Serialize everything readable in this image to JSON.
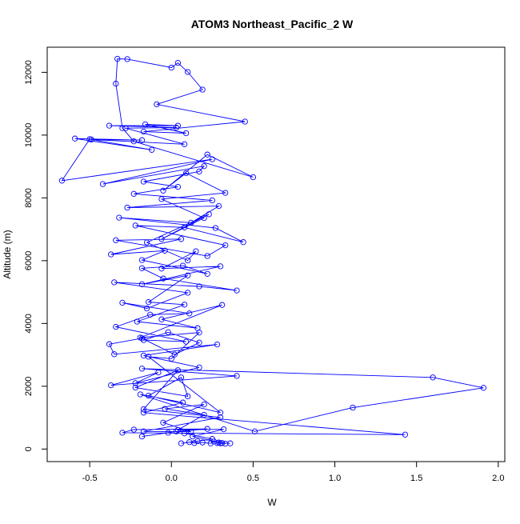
{
  "chart_data": {
    "type": "scatter",
    "connected": true,
    "title": "ATOM3 Northeast_Pacific_2 W",
    "xlabel": "W",
    "ylabel": "Altitude (m)",
    "xlim": [
      -0.76,
      2.04
    ],
    "ylim": [
      -400,
      12800
    ],
    "xticks": [
      -0.5,
      0.0,
      0.5,
      1.0,
      1.5,
      2.0
    ],
    "xtick_labels": [
      "-0.5",
      "0.0",
      "0.5",
      "1.0",
      "1.5",
      "2.0"
    ],
    "yticks": [
      0,
      2000,
      4000,
      6000,
      8000,
      10000,
      12000
    ],
    "ytick_labels": [
      "0",
      "2000",
      "4000",
      "6000",
      "8000",
      "10000",
      "12000"
    ],
    "grid": false,
    "legend": "none",
    "colors": {
      "series": "#0000ff",
      "axes": "#000000",
      "background": "#ffffff"
    },
    "series": [
      {
        "points": [
          [
            0.36,
            180
          ],
          [
            0.31,
            190
          ],
          [
            0.29,
            210
          ],
          [
            0.26,
            240
          ],
          [
            0.24,
            180
          ],
          [
            0.19,
            210
          ],
          [
            0.14,
            190
          ],
          [
            0.11,
            220
          ],
          [
            0.06,
            180
          ],
          [
            0.16,
            250
          ],
          [
            0.25,
            320
          ],
          [
            0.08,
            500
          ],
          [
            -0.02,
            520
          ],
          [
            -0.18,
            400
          ],
          [
            0.03,
            560
          ],
          [
            0.22,
            640
          ],
          [
            -0.23,
            620
          ],
          [
            -0.3,
            520
          ],
          [
            1.43,
            460
          ],
          [
            -0.17,
            1160
          ],
          [
            0.07,
            1480
          ],
          [
            -0.19,
            1740
          ],
          [
            0.51,
            560
          ],
          [
            1.11,
            1320
          ],
          [
            1.91,
            1950
          ],
          [
            1.6,
            2280
          ],
          [
            -0.18,
            2560
          ],
          [
            0.4,
            2330
          ],
          [
            -0.37,
            2030
          ],
          [
            -0.08,
            2440
          ],
          [
            -0.22,
            2100
          ],
          [
            0.17,
            2600
          ],
          [
            -0.17,
            2980
          ],
          [
            0.28,
            3330
          ],
          [
            -0.35,
            3020
          ],
          [
            -0.38,
            3340
          ],
          [
            -0.18,
            3530
          ],
          [
            0.02,
            3010
          ],
          [
            0.17,
            3390
          ],
          [
            -0.02,
            3720
          ],
          [
            -0.17,
            3470
          ],
          [
            0.09,
            3420
          ],
          [
            -0.34,
            3890
          ],
          [
            -0.13,
            4280
          ],
          [
            0.11,
            4320
          ],
          [
            -0.3,
            4660
          ],
          [
            -0.15,
            4480
          ],
          [
            0.1,
            4980
          ],
          [
            -0.35,
            5310
          ],
          [
            0.17,
            5180
          ],
          [
            0.4,
            5050
          ],
          [
            -0.05,
            5430
          ],
          [
            -0.18,
            5760
          ],
          [
            0.07,
            5840
          ],
          [
            0.22,
            5580
          ],
          [
            -0.18,
            6020
          ],
          [
            -0.04,
            6320
          ],
          [
            -0.37,
            6200
          ],
          [
            0.06,
            6690
          ],
          [
            -0.34,
            6650
          ],
          [
            0.22,
            6150
          ],
          [
            0.33,
            6490
          ],
          [
            -0.22,
            7120
          ],
          [
            0.08,
            7060
          ],
          [
            0.44,
            6590
          ],
          [
            0.27,
            7040
          ],
          [
            -0.32,
            7370
          ],
          [
            0.12,
            7210
          ],
          [
            0.29,
            7740
          ],
          [
            -0.27,
            7690
          ],
          [
            0.25,
            7920
          ],
          [
            -0.23,
            8130
          ],
          [
            0.04,
            8350
          ],
          [
            -0.17,
            8520
          ],
          [
            0.17,
            8840
          ],
          [
            0.2,
            9010
          ],
          [
            -0.42,
            8440
          ],
          [
            0.25,
            9230
          ],
          [
            -0.67,
            8550
          ],
          [
            -0.5,
            9870
          ],
          [
            -0.12,
            9530
          ],
          [
            -0.59,
            9890
          ],
          [
            -0.18,
            9840
          ],
          [
            -0.49,
            9860
          ],
          [
            0.08,
            9710
          ],
          [
            -0.28,
            10220
          ],
          [
            0.03,
            10240
          ],
          [
            -0.38,
            10300
          ],
          [
            0.04,
            10300
          ],
          [
            -0.16,
            10340
          ],
          [
            0.09,
            10060
          ],
          [
            -0.17,
            10110
          ],
          [
            0.45,
            10430
          ],
          [
            -0.09,
            10980
          ],
          [
            0.19,
            11450
          ],
          [
            0.1,
            12010
          ],
          [
            0.04,
            12300
          ],
          [
            0.0,
            12150
          ],
          [
            -0.27,
            12420
          ],
          [
            -0.33,
            12430
          ],
          [
            -0.34,
            11640
          ],
          [
            -0.3,
            10220
          ],
          [
            -0.23,
            9800
          ],
          [
            0.5,
            8660
          ],
          [
            0.22,
            9380
          ],
          [
            -0.05,
            8230
          ],
          [
            0.09,
            8790
          ],
          [
            0.33,
            8160
          ],
          [
            -0.06,
            7960
          ],
          [
            0.2,
            7360
          ],
          [
            -0.06,
            6690
          ],
          [
            0.23,
            7480
          ],
          [
            -0.15,
            6580
          ],
          [
            0.1,
            6010
          ],
          [
            0.15,
            6300
          ],
          [
            -0.06,
            5750
          ],
          [
            0.3,
            5820
          ],
          [
            -0.18,
            5250
          ],
          [
            0.1,
            5530
          ],
          [
            -0.14,
            4680
          ],
          [
            0.08,
            4600
          ],
          [
            -0.21,
            4060
          ],
          [
            0.16,
            3850
          ],
          [
            -0.06,
            4130
          ],
          [
            0.31,
            4590
          ],
          [
            -0.19,
            3550
          ],
          [
            0.17,
            3710
          ],
          [
            0.0,
            2880
          ],
          [
            -0.14,
            2940
          ],
          [
            0.3,
            1160
          ],
          [
            -0.14,
            1700
          ],
          [
            0.06,
            2280
          ],
          [
            0.1,
            1680
          ],
          [
            -0.22,
            1960
          ],
          [
            0.04,
            2510
          ],
          [
            -0.17,
            1270
          ],
          [
            0.3,
            1010
          ],
          [
            -0.17,
            560
          ],
          [
            0.12,
            550
          ],
          [
            -0.05,
            840
          ],
          [
            0.2,
            1420
          ],
          [
            -0.04,
            1280
          ],
          [
            0.2,
            1090
          ],
          [
            0.04,
            610
          ],
          [
            0.32,
            630
          ],
          [
            0.13,
            400
          ],
          [
            0.33,
            170
          ],
          [
            0.28,
            190
          ],
          [
            0.3,
            180
          ]
        ]
      }
    ]
  }
}
